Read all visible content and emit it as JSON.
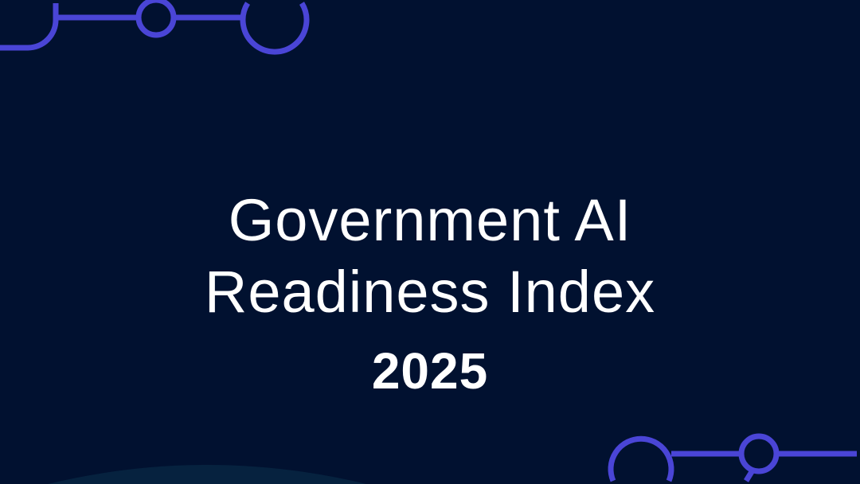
{
  "slide": {
    "title_line1": "Government AI",
    "title_line2": "Readiness Index",
    "year": "2025"
  },
  "colors": {
    "background": "#011130",
    "accent": "#4a45d6",
    "text": "#ffffff"
  }
}
